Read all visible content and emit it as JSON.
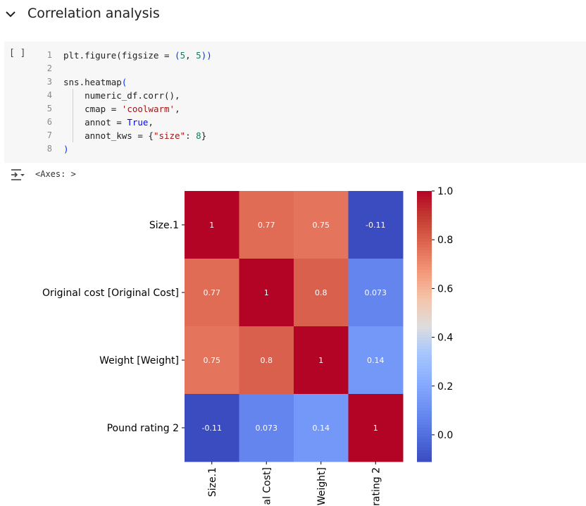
{
  "section": {
    "title": "Correlation analysis"
  },
  "code_cell": {
    "run_label": "[ ]",
    "line_numbers": [
      "1",
      "2",
      "3",
      "4",
      "5",
      "6",
      "7",
      "8"
    ],
    "lines": [
      [
        {
          "t": "plt.figure(figsize = ",
          "c": ""
        },
        {
          "t": "(",
          "c": "blue"
        },
        {
          "t": "5",
          "c": "num"
        },
        {
          "t": ", ",
          "c": ""
        },
        {
          "t": "5",
          "c": "num"
        },
        {
          "t": "))",
          "c": "blue"
        }
      ],
      [],
      [
        {
          "t": "sns.heatmap",
          "c": ""
        },
        {
          "t": "(",
          "c": "blue"
        }
      ],
      [
        {
          "t": "    numeric_df.corr(),",
          "c": ""
        }
      ],
      [
        {
          "t": "    cmap = ",
          "c": ""
        },
        {
          "t": "'coolwarm'",
          "c": "str"
        },
        {
          "t": ",",
          "c": ""
        }
      ],
      [
        {
          "t": "    annot = ",
          "c": ""
        },
        {
          "t": "True",
          "c": "kw"
        },
        {
          "t": ",",
          "c": ""
        }
      ],
      [
        {
          "t": "    annot_kws = {",
          "c": ""
        },
        {
          "t": "\"size\"",
          "c": "str"
        },
        {
          "t": ": ",
          "c": ""
        },
        {
          "t": "8",
          "c": "num"
        },
        {
          "t": "}",
          "c": ""
        }
      ],
      [
        {
          "t": ")",
          "c": "blue"
        }
      ]
    ]
  },
  "output": {
    "text": "<Axes: >"
  },
  "chart_data": {
    "type": "heatmap",
    "row_labels": [
      "Size.1",
      "Original cost [Original Cost]",
      "Weight [Weight]",
      "Pound rating 2"
    ],
    "col_labels": [
      "Size.1",
      "al Cost]",
      "Weight]",
      "rating 2"
    ],
    "values": [
      [
        1,
        0.77,
        0.75,
        -0.11
      ],
      [
        0.77,
        1,
        0.8,
        0.073
      ],
      [
        0.75,
        0.8,
        1,
        0.14
      ],
      [
        -0.11,
        0.073,
        0.14,
        1
      ]
    ],
    "annotations": [
      [
        "1",
        "0.77",
        "0.75",
        "-0.11"
      ],
      [
        "0.77",
        "1",
        "0.8",
        "0.073"
      ],
      [
        "0.75",
        "0.8",
        "1",
        "0.14"
      ],
      [
        "-0.11",
        "0.073",
        "0.14",
        "1"
      ]
    ],
    "cmap": "coolwarm",
    "vmin": -0.11,
    "vmax": 1.0,
    "colorbar_ticks": [
      "1.0",
      "0.8",
      "0.6",
      "0.4",
      "0.2",
      "0.0"
    ],
    "colorbar_tick_values": [
      1.0,
      0.8,
      0.6,
      0.4,
      0.2,
      0.0
    ]
  }
}
